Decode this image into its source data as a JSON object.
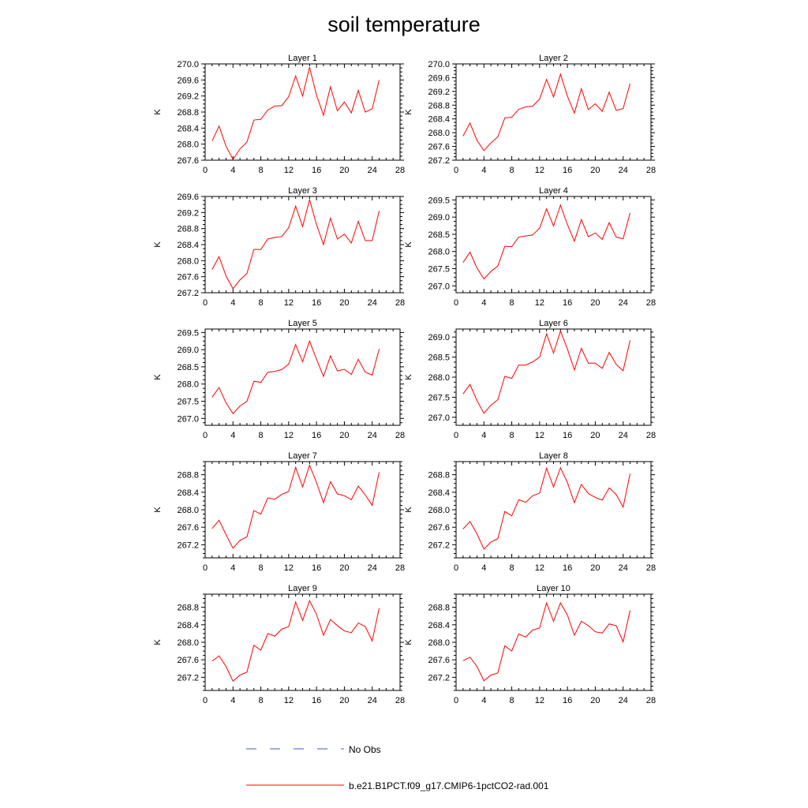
{
  "figure": {
    "title": "soil temperature",
    "legend": [
      {
        "label": "No Obs",
        "color": "#4a55c8",
        "style": "dashed"
      },
      {
        "label": "b.e21.B1PCT.f09_g17.CMIP6-1pctCO2-rad.001",
        "color": "#ff0000",
        "style": "solid"
      }
    ]
  },
  "chart_data": [
    {
      "type": "line",
      "title": "Layer 1",
      "ylabel": "K",
      "xlim": [
        0,
        28
      ],
      "ylim": [
        267.6,
        270.0
      ],
      "xticks": [
        0,
        4,
        8,
        12,
        16,
        20,
        24,
        28
      ],
      "yticks": [
        267.6,
        268.0,
        268.4,
        268.8,
        269.2,
        269.6,
        270.0
      ],
      "x": [
        1,
        2,
        3,
        4,
        5,
        6,
        7,
        8,
        9,
        10,
        11,
        12,
        13,
        14,
        15,
        16,
        17,
        18,
        19,
        20,
        21,
        22,
        23,
        24,
        25
      ],
      "series": [
        {
          "name": "b.e21.B1PCT.f09_g17.CMIP6-1pctCO2-rad.001",
          "color": "#ff0000",
          "values": [
            268.08,
            268.45,
            267.95,
            267.62,
            267.88,
            268.05,
            268.6,
            268.62,
            268.85,
            268.95,
            268.96,
            269.18,
            269.7,
            269.2,
            269.92,
            269.22,
            268.72,
            269.43,
            268.83,
            269.05,
            268.78,
            269.34,
            268.8,
            268.88,
            269.6
          ]
        }
      ]
    },
    {
      "type": "line",
      "title": "Layer 2",
      "ylabel": "K",
      "xlim": [
        0,
        28
      ],
      "ylim": [
        267.2,
        270.0
      ],
      "xticks": [
        0,
        4,
        8,
        12,
        16,
        20,
        24,
        28
      ],
      "yticks": [
        267.2,
        267.6,
        268.0,
        268.4,
        268.8,
        269.2,
        269.6,
        270.0
      ],
      "x": [
        1,
        2,
        3,
        4,
        5,
        6,
        7,
        8,
        9,
        10,
        11,
        12,
        13,
        14,
        15,
        16,
        17,
        18,
        19,
        20,
        21,
        22,
        23,
        24,
        25
      ],
      "series": [
        {
          "name": "b.e21.B1PCT.f09_g17.CMIP6-1pctCO2-rad.001",
          "color": "#ff0000",
          "values": [
            267.9,
            268.28,
            267.78,
            267.48,
            267.7,
            267.88,
            268.43,
            268.45,
            268.68,
            268.75,
            268.77,
            268.98,
            269.55,
            269.04,
            269.7,
            269.06,
            268.57,
            269.28,
            268.67,
            268.84,
            268.62,
            269.18,
            268.65,
            268.7,
            269.43
          ]
        }
      ]
    },
    {
      "type": "line",
      "title": "Layer 3",
      "ylabel": "K",
      "xlim": [
        0,
        28
      ],
      "ylim": [
        267.2,
        269.6
      ],
      "xticks": [
        0,
        4,
        8,
        12,
        16,
        20,
        24,
        28
      ],
      "yticks": [
        267.2,
        267.6,
        268.0,
        268.4,
        268.8,
        269.2,
        269.6
      ],
      "x": [
        1,
        2,
        3,
        4,
        5,
        6,
        7,
        8,
        9,
        10,
        11,
        12,
        13,
        14,
        15,
        16,
        17,
        18,
        19,
        20,
        21,
        22,
        23,
        24,
        25
      ],
      "series": [
        {
          "name": "b.e21.B1PCT.f09_g17.CMIP6-1pctCO2-rad.001",
          "color": "#ff0000",
          "values": [
            267.78,
            268.1,
            267.62,
            267.3,
            267.52,
            267.68,
            268.28,
            268.28,
            268.54,
            268.58,
            268.6,
            268.82,
            269.36,
            268.85,
            269.52,
            268.9,
            268.4,
            269.06,
            268.54,
            268.66,
            268.44,
            268.98,
            268.5,
            268.5,
            269.24
          ]
        }
      ]
    },
    {
      "type": "line",
      "title": "Layer 4",
      "ylabel": "K",
      "xlim": [
        0,
        28
      ],
      "ylim": [
        266.8,
        269.6
      ],
      "xticks": [
        0,
        4,
        8,
        12,
        16,
        20,
        24,
        28
      ],
      "yticks": [
        267.0,
        267.5,
        268.0,
        268.5,
        269.0,
        269.5
      ],
      "x": [
        1,
        2,
        3,
        4,
        5,
        6,
        7,
        8,
        9,
        10,
        11,
        12,
        13,
        14,
        15,
        16,
        17,
        18,
        19,
        20,
        21,
        22,
        23,
        24,
        25
      ],
      "series": [
        {
          "name": "b.e21.B1PCT.f09_g17.CMIP6-1pctCO2-rad.001",
          "color": "#ff0000",
          "values": [
            267.68,
            267.98,
            267.52,
            267.2,
            267.42,
            267.58,
            268.15,
            268.14,
            268.42,
            268.45,
            268.48,
            268.68,
            269.24,
            268.74,
            269.35,
            268.78,
            268.3,
            268.93,
            268.43,
            268.54,
            268.35,
            268.84,
            268.42,
            268.37,
            269.12
          ]
        }
      ]
    },
    {
      "type": "line",
      "title": "Layer 5",
      "ylabel": "K",
      "xlim": [
        0,
        28
      ],
      "ylim": [
        266.8,
        269.6
      ],
      "xticks": [
        0,
        4,
        8,
        12,
        16,
        20,
        24,
        28
      ],
      "yticks": [
        267.0,
        267.5,
        268.0,
        268.5,
        269.0,
        269.5
      ],
      "x": [
        1,
        2,
        3,
        4,
        5,
        6,
        7,
        8,
        9,
        10,
        11,
        12,
        13,
        14,
        15,
        16,
        17,
        18,
        19,
        20,
        21,
        22,
        23,
        24,
        25
      ],
      "series": [
        {
          "name": "b.e21.B1PCT.f09_g17.CMIP6-1pctCO2-rad.001",
          "color": "#ff0000",
          "values": [
            267.62,
            267.9,
            267.45,
            267.14,
            267.36,
            267.5,
            268.08,
            268.05,
            268.34,
            268.37,
            268.42,
            268.58,
            269.15,
            268.65,
            269.25,
            268.72,
            268.22,
            268.82,
            268.38,
            268.43,
            268.28,
            268.72,
            268.35,
            268.26,
            269.02
          ]
        }
      ]
    },
    {
      "type": "line",
      "title": "Layer 6",
      "ylabel": "K",
      "xlim": [
        0,
        28
      ],
      "ylim": [
        266.8,
        269.2
      ],
      "xticks": [
        0,
        4,
        8,
        12,
        16,
        20,
        24,
        28
      ],
      "yticks": [
        267.0,
        267.5,
        268.0,
        268.5,
        269.0
      ],
      "x": [
        1,
        2,
        3,
        4,
        5,
        6,
        7,
        8,
        9,
        10,
        11,
        12,
        13,
        14,
        15,
        16,
        17,
        18,
        19,
        20,
        21,
        22,
        23,
        24,
        25
      ],
      "series": [
        {
          "name": "b.e21.B1PCT.f09_g17.CMIP6-1pctCO2-rad.001",
          "color": "#ff0000",
          "values": [
            267.58,
            267.82,
            267.42,
            267.1,
            267.3,
            267.44,
            268.02,
            267.97,
            268.3,
            268.3,
            268.38,
            268.5,
            269.08,
            268.6,
            269.15,
            268.7,
            268.18,
            268.72,
            268.35,
            268.35,
            268.22,
            268.62,
            268.32,
            268.16,
            268.92
          ]
        }
      ]
    },
    {
      "type": "line",
      "title": "Layer 7",
      "ylabel": "K",
      "xlim": [
        0,
        28
      ],
      "ylim": [
        266.9,
        269.1
      ],
      "xticks": [
        0,
        4,
        8,
        12,
        16,
        20,
        24,
        28
      ],
      "yticks": [
        267.2,
        267.6,
        268.0,
        268.4,
        268.8
      ],
      "x": [
        1,
        2,
        3,
        4,
        5,
        6,
        7,
        8,
        9,
        10,
        11,
        12,
        13,
        14,
        15,
        16,
        17,
        18,
        19,
        20,
        21,
        22,
        23,
        24,
        25
      ],
      "series": [
        {
          "name": "b.e21.B1PCT.f09_g17.CMIP6-1pctCO2-rad.001",
          "color": "#ff0000",
          "values": [
            267.57,
            267.76,
            267.43,
            267.12,
            267.3,
            267.38,
            267.98,
            267.9,
            268.27,
            268.24,
            268.35,
            268.42,
            268.97,
            268.52,
            269.02,
            268.62,
            268.16,
            268.64,
            268.36,
            268.32,
            268.23,
            268.54,
            268.34,
            268.1,
            268.86
          ]
        }
      ]
    },
    {
      "type": "line",
      "title": "Layer 8",
      "ylabel": "K",
      "xlim": [
        0,
        28
      ],
      "ylim": [
        266.9,
        269.1
      ],
      "xticks": [
        0,
        4,
        8,
        12,
        16,
        20,
        24,
        28
      ],
      "yticks": [
        267.2,
        267.6,
        268.0,
        268.4,
        268.8
      ],
      "x": [
        1,
        2,
        3,
        4,
        5,
        6,
        7,
        8,
        9,
        10,
        11,
        12,
        13,
        14,
        15,
        16,
        17,
        18,
        19,
        20,
        21,
        22,
        23,
        24,
        25
      ],
      "series": [
        {
          "name": "b.e21.B1PCT.f09_g17.CMIP6-1pctCO2-rad.001",
          "color": "#ff0000",
          "values": [
            267.56,
            267.73,
            267.45,
            267.1,
            267.26,
            267.34,
            267.96,
            267.86,
            268.23,
            268.17,
            268.32,
            268.38,
            268.95,
            268.52,
            268.96,
            268.62,
            268.16,
            268.58,
            268.37,
            268.28,
            268.22,
            268.5,
            268.35,
            268.06,
            268.82
          ]
        }
      ]
    },
    {
      "type": "line",
      "title": "Layer 9",
      "ylabel": "K",
      "xlim": [
        0,
        28
      ],
      "ylim": [
        266.9,
        269.1
      ],
      "xticks": [
        0,
        4,
        8,
        12,
        16,
        20,
        24,
        28
      ],
      "yticks": [
        267.2,
        267.6,
        268.0,
        268.4,
        268.8
      ],
      "x": [
        1,
        2,
        3,
        4,
        5,
        6,
        7,
        8,
        9,
        10,
        11,
        12,
        13,
        14,
        15,
        16,
        17,
        18,
        19,
        20,
        21,
        22,
        23,
        24,
        25
      ],
      "series": [
        {
          "name": "b.e21.B1PCT.f09_g17.CMIP6-1pctCO2-rad.001",
          "color": "#ff0000",
          "values": [
            267.57,
            267.69,
            267.45,
            267.11,
            267.25,
            267.32,
            267.93,
            267.82,
            268.2,
            268.14,
            268.3,
            268.36,
            268.92,
            268.5,
            268.95,
            268.64,
            268.16,
            268.52,
            268.38,
            268.26,
            268.22,
            268.44,
            268.36,
            268.03,
            268.78
          ]
        }
      ]
    },
    {
      "type": "line",
      "title": "Layer 10",
      "ylabel": "K",
      "xlim": [
        0,
        28
      ],
      "ylim": [
        266.9,
        269.1
      ],
      "xticks": [
        0,
        4,
        8,
        12,
        16,
        20,
        24,
        28
      ],
      "yticks": [
        267.2,
        267.6,
        268.0,
        268.4,
        268.8
      ],
      "x": [
        1,
        2,
        3,
        4,
        5,
        6,
        7,
        8,
        9,
        10,
        11,
        12,
        13,
        14,
        15,
        16,
        17,
        18,
        19,
        20,
        21,
        22,
        23,
        24,
        25
      ],
      "series": [
        {
          "name": "b.e21.B1PCT.f09_g17.CMIP6-1pctCO2-rad.001",
          "color": "#ff0000",
          "values": [
            267.58,
            267.66,
            267.45,
            267.12,
            267.25,
            267.3,
            267.92,
            267.8,
            268.19,
            268.12,
            268.28,
            268.33,
            268.9,
            268.48,
            268.9,
            268.62,
            268.16,
            268.48,
            268.38,
            268.24,
            268.21,
            268.42,
            268.38,
            268.01,
            268.73
          ]
        }
      ]
    }
  ]
}
